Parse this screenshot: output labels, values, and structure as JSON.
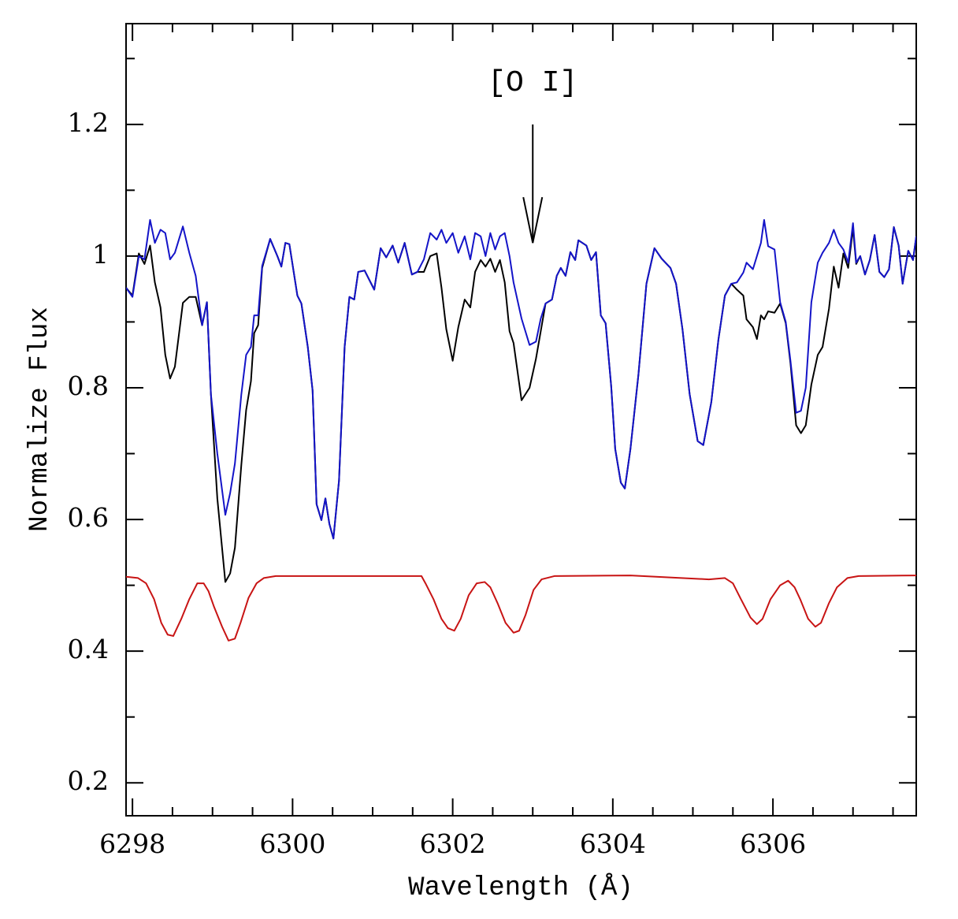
{
  "chart_data": {
    "type": "line",
    "xlabel": "Wavelength (Å)",
    "ylabel": "Normalize Flux",
    "xlim": [
      6297.92,
      6307.79
    ],
    "ylim": [
      0.15,
      1.353
    ],
    "xticks": [
      6298,
      6300,
      6302,
      6304,
      6306
    ],
    "yticks": [
      0.2,
      0.4,
      0.6,
      0.8,
      1,
      1.2
    ],
    "xminor_ticks": [
      6298.5,
      6299,
      6299.5,
      6300.5,
      6301,
      6301.5,
      6302.5,
      6303,
      6303.5,
      6304.5,
      6305,
      6305.5,
      6306.5,
      6307,
      6307.5
    ],
    "yminor_ticks": [
      0.3,
      0.5,
      0.7,
      0.9,
      1.1,
      1.3
    ],
    "annotation": {
      "text": "[O I]",
      "x": 6303,
      "y": 1.263,
      "arrow_from": 1.2,
      "arrow_to": 1.02
    },
    "series": [
      {
        "color": "#000000",
        "x": [
          6297.92,
          6298.0,
          6298.08,
          6298.15,
          6298.22,
          6298.28,
          6298.35,
          6298.41,
          6298.47,
          6298.53,
          6298.63,
          6298.71,
          6298.79,
          6298.87,
          6298.93,
          6298.98,
          6299.06,
          6299.16,
          6299.22,
          6299.28,
          6299.36,
          6299.42,
          6299.48,
          6299.52,
          6299.57,
          6299.62,
          6299.72,
          6299.81,
          6299.86,
          6299.91,
          6299.96,
          6300.06,
          6300.11,
          6300.19,
          6300.25,
          6300.3,
          6300.36,
          6300.41,
          6300.46,
          6300.51,
          6300.58,
          6300.65,
          6300.71,
          6300.77,
          6300.82,
          6300.9,
          6301.02,
          6301.1,
          6301.17,
          6301.25,
          6301.32,
          6301.4,
          6301.49,
          6301.56,
          6301.64,
          6301.72,
          6301.8,
          6301.86,
          6301.92,
          6302.0,
          6302.07,
          6302.15,
          6302.22,
          6302.28,
          6302.35,
          6302.41,
          6302.47,
          6302.53,
          6302.59,
          6302.65,
          6302.71,
          6302.76,
          6302.86,
          6302.96,
          6303.04,
          6303.1,
          6303.16,
          6303.24,
          6303.3,
          6303.35,
          6303.41,
          6303.47,
          6303.53,
          6303.57,
          6303.67,
          6303.73,
          6303.79,
          6303.85,
          6303.91,
          6303.98,
          6304.03,
          6304.1,
          6304.15,
          6304.22,
          6304.32,
          6304.42,
          6304.52,
          6304.61,
          6304.72,
          6304.79,
          6304.87,
          6304.96,
          6305.06,
          6305.13,
          6305.23,
          6305.32,
          6305.4,
          6305.48,
          6305.55,
          6305.63,
          6305.67,
          6305.75,
          6305.8,
          6305.85,
          6305.89,
          6305.94,
          6306.02,
          6306.09,
          6306.16,
          6306.22,
          6306.29,
          6306.35,
          6306.41,
          6306.48,
          6306.56,
          6306.62,
          6306.7,
          6306.76,
          6306.82,
          6306.88,
          6306.94,
          6307.0,
          6307.04,
          6307.09,
          6307.15,
          6307.21,
          6307.27,
          6307.33,
          6307.39,
          6307.45,
          6307.51,
          6307.57,
          6307.62,
          6307.69,
          6307.75,
          6307.79
        ],
        "values": [
          0.952,
          0.94,
          1.004,
          0.988,
          1.016,
          0.96,
          0.922,
          0.85,
          0.814,
          0.832,
          0.929,
          0.938,
          0.938,
          0.895,
          0.93,
          0.79,
          0.632,
          0.505,
          0.518,
          0.557,
          0.683,
          0.766,
          0.81,
          0.883,
          0.895,
          0.982,
          1.026,
          1.0,
          0.984,
          1.02,
          1.018,
          0.94,
          0.928,
          0.862,
          0.796,
          0.623,
          0.599,
          0.632,
          0.593,
          0.571,
          0.659,
          0.862,
          0.938,
          0.934,
          0.976,
          0.978,
          0.949,
          1.012,
          0.998,
          1.016,
          0.99,
          1.02,
          0.972,
          0.976,
          0.976,
          1.0,
          1.004,
          0.952,
          0.889,
          0.841,
          0.892,
          0.934,
          0.922,
          0.976,
          0.994,
          0.984,
          0.996,
          0.976,
          0.994,
          0.96,
          0.886,
          0.868,
          0.781,
          0.8,
          0.844,
          0.886,
          0.928,
          0.934,
          0.97,
          0.982,
          0.97,
          1.006,
          0.994,
          1.024,
          1.016,
          0.994,
          1.006,
          0.91,
          0.898,
          0.802,
          0.707,
          0.656,
          0.647,
          0.707,
          0.82,
          0.958,
          1.012,
          0.996,
          0.982,
          0.958,
          0.889,
          0.79,
          0.719,
          0.713,
          0.778,
          0.874,
          0.94,
          0.958,
          0.949,
          0.94,
          0.904,
          0.892,
          0.874,
          0.91,
          0.904,
          0.916,
          0.914,
          0.928,
          0.898,
          0.836,
          0.743,
          0.731,
          0.743,
          0.805,
          0.85,
          0.862,
          0.92,
          0.984,
          0.952,
          1.004,
          0.982,
          1.042,
          0.988,
          1.0,
          0.972,
          0.994,
          1.032,
          0.976,
          0.968,
          0.98,
          1.044,
          1.016,
          0.958,
          1.008,
          0.994,
          1.03
        ]
      },
      {
        "color": "#1414c8",
        "x": [
          6297.92,
          6298.0,
          6298.08,
          6298.15,
          6298.22,
          6298.28,
          6298.35,
          6298.41,
          6298.47,
          6298.53,
          6298.63,
          6298.71,
          6298.79,
          6298.87,
          6298.93,
          6298.98,
          6299.06,
          6299.16,
          6299.22,
          6299.28,
          6299.36,
          6299.42,
          6299.48,
          6299.52,
          6299.57,
          6299.62,
          6299.72,
          6299.81,
          6299.86,
          6299.91,
          6299.96,
          6300.06,
          6300.11,
          6300.19,
          6300.25,
          6300.3,
          6300.36,
          6300.41,
          6300.46,
          6300.51,
          6300.58,
          6300.65,
          6300.71,
          6300.77,
          6300.82,
          6300.9,
          6301.02,
          6301.1,
          6301.17,
          6301.25,
          6301.32,
          6301.4,
          6301.49,
          6301.56,
          6301.64,
          6301.72,
          6301.8,
          6301.86,
          6301.92,
          6302.0,
          6302.07,
          6302.15,
          6302.22,
          6302.28,
          6302.35,
          6302.41,
          6302.47,
          6302.53,
          6302.59,
          6302.65,
          6302.71,
          6302.76,
          6302.86,
          6302.96,
          6303.04,
          6303.1,
          6303.16,
          6303.24,
          6303.3,
          6303.35,
          6303.41,
          6303.47,
          6303.53,
          6303.57,
          6303.67,
          6303.73,
          6303.79,
          6303.85,
          6303.91,
          6303.98,
          6304.03,
          6304.1,
          6304.15,
          6304.22,
          6304.32,
          6304.42,
          6304.52,
          6304.61,
          6304.72,
          6304.79,
          6304.87,
          6304.96,
          6305.06,
          6305.13,
          6305.23,
          6305.32,
          6305.4,
          6305.48,
          6305.55,
          6305.63,
          6305.67,
          6305.75,
          6305.8,
          6305.85,
          6305.89,
          6305.94,
          6306.02,
          6306.09,
          6306.16,
          6306.22,
          6306.29,
          6306.35,
          6306.41,
          6306.48,
          6306.56,
          6306.62,
          6306.7,
          6306.76,
          6306.82,
          6306.88,
          6306.94,
          6307.0,
          6307.04,
          6307.09,
          6307.15,
          6307.21,
          6307.27,
          6307.33,
          6307.39,
          6307.45,
          6307.51,
          6307.57,
          6307.62,
          6307.69,
          6307.75,
          6307.79
        ],
        "values": [
          0.952,
          0.938,
          1.0,
          0.995,
          1.055,
          1.02,
          1.04,
          1.035,
          0.995,
          1.005,
          1.045,
          1.005,
          0.97,
          0.895,
          0.93,
          0.79,
          0.7,
          0.607,
          0.64,
          0.685,
          0.79,
          0.85,
          0.862,
          0.91,
          0.91,
          0.985,
          1.026,
          1.0,
          0.984,
          1.02,
          1.018,
          0.94,
          0.928,
          0.862,
          0.796,
          0.623,
          0.599,
          0.632,
          0.593,
          0.571,
          0.659,
          0.862,
          0.938,
          0.934,
          0.976,
          0.978,
          0.949,
          1.012,
          0.998,
          1.016,
          0.99,
          1.02,
          0.972,
          0.976,
          0.995,
          1.035,
          1.025,
          1.04,
          1.02,
          1.035,
          1.005,
          1.03,
          0.995,
          1.035,
          1.03,
          1.0,
          1.035,
          1.01,
          1.03,
          1.035,
          1.0,
          0.96,
          0.905,
          0.865,
          0.87,
          0.905,
          0.928,
          0.934,
          0.97,
          0.982,
          0.97,
          1.006,
          0.994,
          1.024,
          1.016,
          0.994,
          1.006,
          0.91,
          0.898,
          0.802,
          0.707,
          0.656,
          0.647,
          0.707,
          0.82,
          0.958,
          1.012,
          0.996,
          0.982,
          0.958,
          0.889,
          0.79,
          0.719,
          0.713,
          0.778,
          0.874,
          0.94,
          0.958,
          0.96,
          0.975,
          0.99,
          0.98,
          1.0,
          1.02,
          1.055,
          1.015,
          1.01,
          0.93,
          0.9,
          0.84,
          0.762,
          0.765,
          0.8,
          0.93,
          0.99,
          1.005,
          1.02,
          1.04,
          1.02,
          1.01,
          0.99,
          1.05,
          0.99,
          1.0,
          0.972,
          0.994,
          1.032,
          0.976,
          0.968,
          0.98,
          1.044,
          1.016,
          0.958,
          1.008,
          0.994,
          1.03
        ]
      },
      {
        "color": "#c81414",
        "x": [
          6297.92,
          6298.07,
          6298.17,
          6298.27,
          6298.36,
          6298.44,
          6298.51,
          6298.61,
          6298.71,
          6298.81,
          6298.89,
          6298.95,
          6299.02,
          6299.12,
          6299.2,
          6299.28,
          6299.35,
          6299.45,
          6299.55,
          6299.64,
          6299.79,
          6300.78,
          6301.61,
          6301.66,
          6301.76,
          6301.86,
          6301.94,
          6302.02,
          6302.1,
          6302.2,
          6302.3,
          6302.4,
          6302.47,
          6302.56,
          6302.66,
          6302.76,
          6302.83,
          6302.91,
          6303.01,
          6303.11,
          6303.27,
          6304.22,
          6305.2,
          6305.4,
          6305.5,
          6305.6,
          6305.72,
          6305.8,
          6305.87,
          6305.97,
          6306.09,
          6306.19,
          6306.27,
          6306.34,
          6306.44,
          6306.53,
          6306.6,
          6306.7,
          6306.8,
          6306.93,
          6307.07,
          6307.79
        ],
        "values": [
          0.513,
          0.511,
          0.503,
          0.479,
          0.443,
          0.425,
          0.423,
          0.449,
          0.479,
          0.503,
          0.503,
          0.491,
          0.467,
          0.437,
          0.416,
          0.419,
          0.443,
          0.481,
          0.503,
          0.511,
          0.514,
          0.514,
          0.514,
          0.503,
          0.479,
          0.449,
          0.435,
          0.431,
          0.449,
          0.485,
          0.503,
          0.505,
          0.497,
          0.473,
          0.443,
          0.428,
          0.431,
          0.455,
          0.493,
          0.509,
          0.514,
          0.515,
          0.509,
          0.511,
          0.503,
          0.479,
          0.451,
          0.441,
          0.449,
          0.479,
          0.5,
          0.507,
          0.497,
          0.479,
          0.449,
          0.437,
          0.443,
          0.473,
          0.497,
          0.511,
          0.514,
          0.515
        ]
      }
    ]
  }
}
